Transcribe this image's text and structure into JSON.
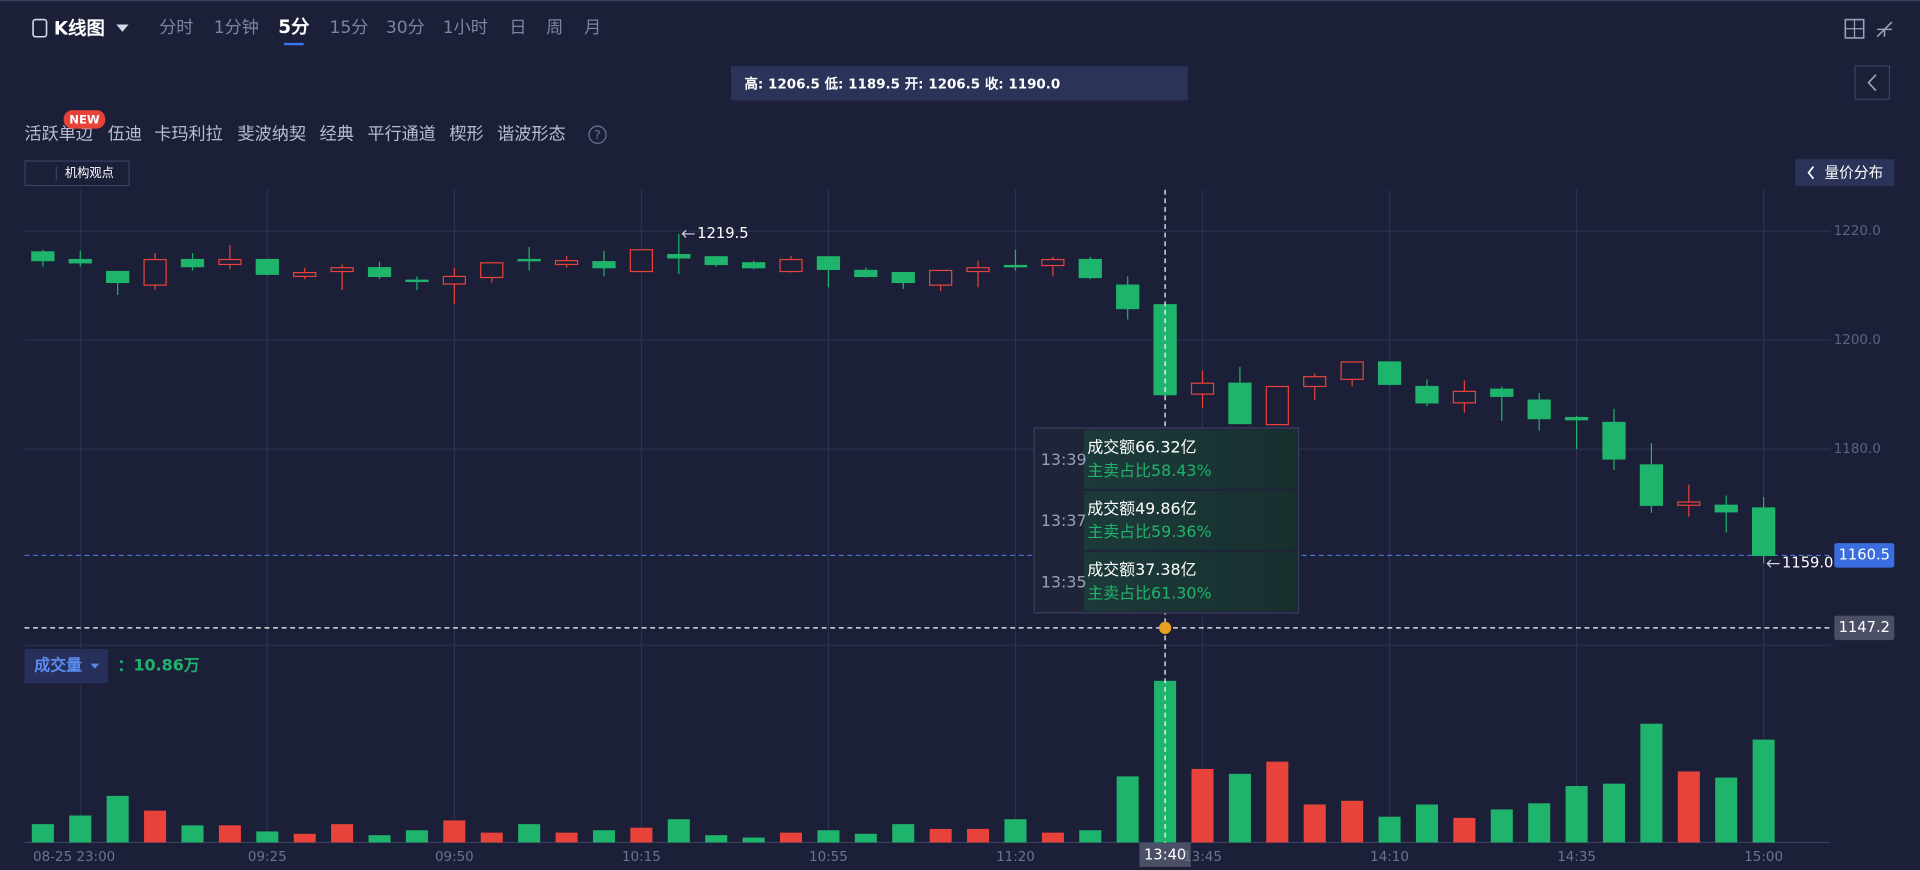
{
  "toolbar": {
    "chart_type": "K线图",
    "periods": [
      "分时",
      "1分钟",
      "5分",
      "15分",
      "30分",
      "1小时",
      "日",
      "周",
      "月"
    ],
    "active_period": "5分"
  },
  "ohlc_readout": "高: 1206.5 低: 1189.5 开: 1206.5 收: 1190.0",
  "indicators": {
    "badge": "NEW",
    "items": [
      "活跃单边",
      "伍迪",
      "卡玛利拉",
      "斐波纳契",
      "经典",
      "平行通道",
      "楔形",
      "谐波形态"
    ]
  },
  "institution_view": "机构观点",
  "volume_profile": "量价分布",
  "tooltip": [
    {
      "time": "13:39",
      "amount": "成交额66.32亿",
      "ratio": "主卖占比58.43%"
    },
    {
      "time": "13:37",
      "amount": "成交额49.86亿",
      "ratio": "主卖占比59.36%"
    },
    {
      "time": "13:35",
      "amount": "成交额37.38亿",
      "ratio": "主卖占比61.30%"
    }
  ],
  "chart_data": {
    "type": "candlestick",
    "categories": [
      "08-25 23:00",
      null,
      null,
      null,
      null,
      null,
      "09:25",
      null,
      null,
      null,
      null,
      "09:50",
      null,
      null,
      null,
      null,
      "10:15",
      null,
      null,
      null,
      null,
      "10:55",
      null,
      null,
      null,
      null,
      "11:20",
      null,
      null,
      null,
      "13:40",
      "13:45",
      null,
      null,
      null,
      null,
      "14:10",
      null,
      null,
      null,
      null,
      "14:35",
      null,
      null,
      null,
      null,
      "15:00"
    ],
    "open": [
      1216.2,
      1214.8,
      1212.6,
      1210.1,
      1214.8,
      1213.9,
      1214.8,
      1211.7,
      1212.6,
      1213.3,
      1211.0,
      1210.3,
      1211.5,
      1214.8,
      1213.9,
      1214.4,
      1212.6,
      1215.7,
      1215.3,
      1214.2,
      1212.6,
      1215.3,
      1212.8,
      1212.4,
      1210.1,
      1212.6,
      1213.7,
      1213.7,
      1214.8,
      1210.1,
      1206.5,
      1190.1,
      1192.1,
      1184.5,
      1191.5,
      1192.8,
      1196.0,
      1191.5,
      1188.5,
      1191.0,
      1189.0,
      1185.8,
      1184.9,
      1177.1,
      1169.7,
      1169.7,
      1169.2
    ],
    "high": [
      1216.6,
      1216.4,
      1212.6,
      1216.0,
      1216.0,
      1217.5,
      1214.8,
      1213.3,
      1213.9,
      1214.4,
      1211.7,
      1213.3,
      1214.2,
      1217.1,
      1215.5,
      1216.4,
      1216.6,
      1219.5,
      1215.5,
      1214.6,
      1215.5,
      1215.3,
      1213.3,
      1212.4,
      1212.8,
      1214.6,
      1216.6,
      1215.3,
      1215.3,
      1211.7,
      1206.5,
      1194.4,
      1195.1,
      1191.5,
      1193.9,
      1196.0,
      1196.0,
      1192.8,
      1192.6,
      1191.5,
      1190.3,
      1186.1,
      1187.4,
      1181.1,
      1173.5,
      1171.5,
      1171.2
    ],
    "low": [
      1213.5,
      1213.5,
      1208.3,
      1209.2,
      1212.8,
      1213.0,
      1211.9,
      1211.2,
      1209.2,
      1211.2,
      1209.2,
      1206.7,
      1210.6,
      1212.8,
      1213.3,
      1211.7,
      1212.6,
      1212.1,
      1213.5,
      1213.0,
      1212.4,
      1209.7,
      1211.5,
      1209.4,
      1209.0,
      1209.7,
      1212.8,
      1211.7,
      1211.2,
      1203.8,
      1189.5,
      1187.6,
      1184.7,
      1184.5,
      1189.0,
      1191.5,
      1191.7,
      1187.9,
      1186.7,
      1185.2,
      1183.4,
      1180.0,
      1176.2,
      1168.3,
      1167.6,
      1164.7,
      1159.0
    ],
    "close": [
      1214.6,
      1214.2,
      1210.6,
      1214.8,
      1213.5,
      1214.8,
      1212.1,
      1212.4,
      1213.3,
      1211.7,
      1210.8,
      1211.7,
      1214.2,
      1214.6,
      1214.6,
      1213.3,
      1216.6,
      1215.1,
      1213.9,
      1213.3,
      1214.8,
      1213.0,
      1211.7,
      1210.6,
      1212.8,
      1213.3,
      1213.5,
      1214.8,
      1211.5,
      1205.8,
      1190.0,
      1192.1,
      1184.7,
      1191.5,
      1193.3,
      1196.0,
      1191.9,
      1188.5,
      1190.6,
      1189.7,
      1185.6,
      1185.4,
      1178.2,
      1169.7,
      1170.3,
      1168.5,
      1160.5
    ],
    "ylim": [
      1144,
      1227.6
    ],
    "yticks": [
      {
        "value": 1220,
        "label": "1220.0"
      },
      {
        "value": 1200,
        "label": "1200.0"
      },
      {
        "value": 1180,
        "label": "1180.0"
      }
    ],
    "up_color": "#e8433a",
    "down_color": "#1fb46b",
    "grid": true,
    "last_price": 1160.5,
    "crosshair_price": 1147.2,
    "high_mark": 1219.5,
    "low_mark": {
      "value": 1159,
      "label": "1159.0"
    },
    "volume": {
      "label": "成交量",
      "readout": "：10.86万",
      "values": [
        1.23,
        1.81,
        3.13,
        2.14,
        1.15,
        1.15,
        0.74,
        0.58,
        1.23,
        0.49,
        0.82,
        1.48,
        0.66,
        1.23,
        0.66,
        0.82,
        0.99,
        1.56,
        0.49,
        0.33,
        0.66,
        0.82,
        0.58,
        1.23,
        0.91,
        0.91,
        1.56,
        0.66,
        0.82,
        4.44,
        10.86,
        4.94,
        4.61,
        5.43,
        2.55,
        2.8,
        1.73,
        2.55,
        1.65,
        2.22,
        2.63,
        3.79,
        3.95,
        7.98,
        4.77,
        4.36,
        6.91
      ],
      "ylim": [
        0,
        13
      ]
    }
  }
}
